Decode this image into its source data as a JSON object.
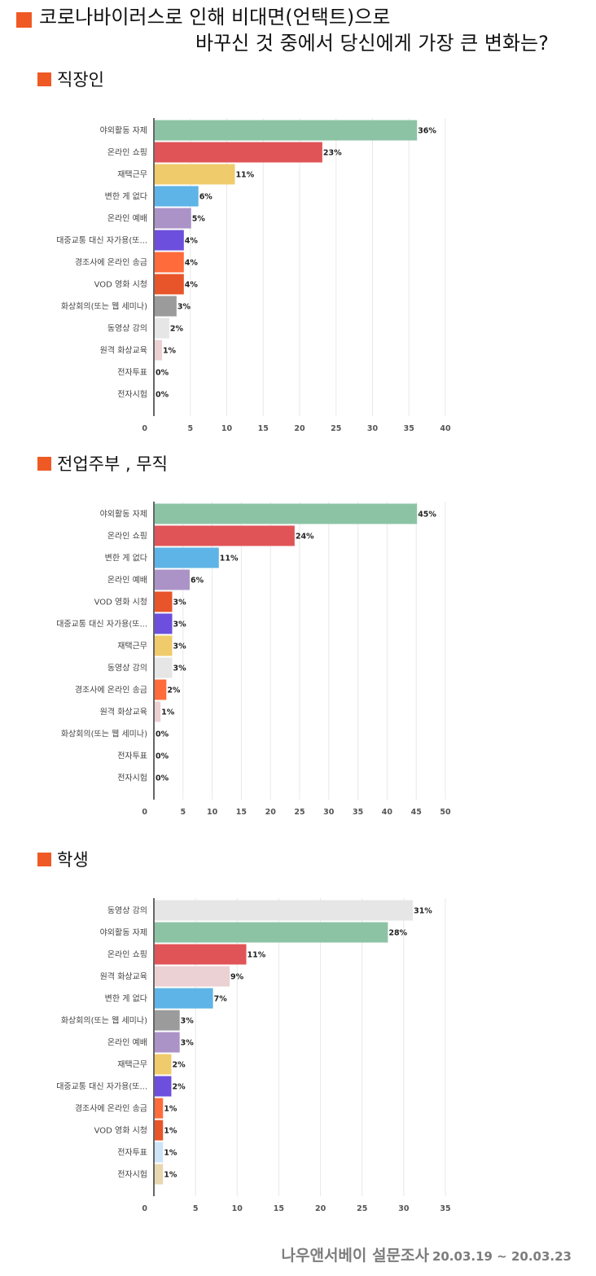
{
  "header": {
    "title_line1": "코로나바이러스로 인해 비대면(언택트)으로",
    "title_line2": "바꾸신 것 중에서 당신에게 가장 큰 변화는?"
  },
  "colors": {
    "accent": "#ef5a24",
    "야외활동 자제": "#8dc3a5",
    "온라인 쇼핑": "#e05457",
    "재택근무": "#f0cb6b",
    "변한 게 없다": "#5eb4e6",
    "온라인 예배": "#ab93c8",
    "대중교통 대신 자가용(또...": "#6c4fdc",
    "경조사에 온라인 송금": "#ff6b3b",
    "VOD 영화 시청": "#e8552a",
    "화상회의(또는 웹 세미나)": "#9b9b9b",
    "동영상 강의": "#e6e6e6",
    "원격 화상교육": "#ebd0d4",
    "전자투표": "#cde3f6",
    "전자시험": "#e9d7b0"
  },
  "chart_data": [
    {
      "type": "bar",
      "orientation": "horizontal",
      "section_title": "직장인",
      "categories": [
        "야외활동 자제",
        "온라인 쇼핑",
        "재택근무",
        "변한 게 없다",
        "온라인 예배",
        "대중교통 대신 자가용(또...",
        "경조사에 온라인 송금",
        "VOD 영화 시청",
        "화상회의(또는 웹 세미나)",
        "동영상 강의",
        "원격 화상교육",
        "전자투표",
        "전자시험"
      ],
      "values": [
        36,
        23,
        11,
        6,
        5,
        4,
        4,
        4,
        3,
        2,
        1,
        0,
        0
      ],
      "value_labels": [
        "36%",
        "23%",
        "11%",
        "6%",
        "5%",
        "4%",
        "4%",
        "4%",
        "3%",
        "2%",
        "1%",
        "0%",
        "0%"
      ],
      "xlim": [
        0,
        40
      ],
      "ticks": [
        0,
        5,
        10,
        15,
        20,
        25,
        30,
        35,
        40
      ],
      "grid": true
    },
    {
      "type": "bar",
      "orientation": "horizontal",
      "section_title": "전업주부 , 무직",
      "categories": [
        "야외활동 자제",
        "온라인 쇼핑",
        "변한 게 없다",
        "온라인 예배",
        "VOD 영화 시청",
        "대중교통 대신 자가용(또...",
        "재택근무",
        "동영상 강의",
        "경조사에 온라인 송금",
        "원격 화상교육",
        "화상회의(또는 웹 세미나)",
        "전자투표",
        "전자시험"
      ],
      "values": [
        45,
        24,
        11,
        6,
        3,
        3,
        3,
        3,
        2,
        1,
        0,
        0,
        0
      ],
      "value_labels": [
        "45%",
        "24%",
        "11%",
        "6%",
        "3%",
        "3%",
        "3%",
        "3%",
        "2%",
        "1%",
        "0%",
        "0%",
        "0%"
      ],
      "xlim": [
        0,
        50
      ],
      "ticks": [
        0,
        5,
        10,
        15,
        20,
        25,
        30,
        35,
        40,
        45,
        50
      ],
      "grid": true
    },
    {
      "type": "bar",
      "orientation": "horizontal",
      "section_title": "학생",
      "categories": [
        "동영상 강의",
        "야외활동 자제",
        "온라인 쇼핑",
        "원격 화상교육",
        "변한 게 없다",
        "화상회의(또는 웹 세미나)",
        "온라인 예배",
        "재택근무",
        "대중교통 대신 자가용(또...",
        "경조사에 온라인 송금",
        "VOD 영화 시청",
        "전자투표",
        "전자시험"
      ],
      "values": [
        31,
        28,
        11,
        9,
        7,
        3,
        3,
        2,
        2,
        1,
        1,
        1,
        1
      ],
      "value_labels": [
        "31%",
        "28%",
        "11%",
        "9%",
        "7%",
        "3%",
        "3%",
        "2%",
        "2%",
        "1%",
        "1%",
        "1%",
        "1%"
      ],
      "xlim": [
        0,
        35
      ],
      "ticks": [
        0,
        5,
        10,
        15,
        20,
        25,
        30,
        35
      ],
      "grid": true
    }
  ],
  "footer": {
    "survey_name": "나우앤서베이 설문조사",
    "date_range": "20.03.19 ~ 20.03.23"
  }
}
